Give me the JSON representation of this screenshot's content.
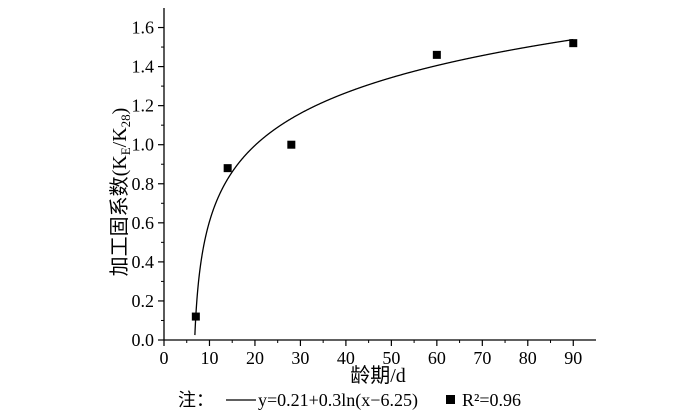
{
  "chart_data": {
    "type": "scatter",
    "xlabel": "龄期/d",
    "ylabel_main": "加工固系数(K",
    "ylabel_sub1": "E",
    "ylabel_mid": "/K",
    "ylabel_sub2": "28",
    "ylabel_end": ")",
    "xlim": [
      0,
      95
    ],
    "ylim": [
      0,
      1.7
    ],
    "x_ticks": [
      0,
      10,
      20,
      30,
      40,
      50,
      60,
      70,
      80,
      90
    ],
    "x_tick_labels": [
      "0",
      "10",
      "20",
      "30",
      "40",
      "50",
      "60",
      "70",
      "80",
      "90"
    ],
    "y_ticks": [
      0.0,
      0.2,
      0.4,
      0.6,
      0.8,
      1.0,
      1.2,
      1.4,
      1.6
    ],
    "y_tick_labels": [
      "0.0",
      "0.2",
      "0.4",
      "0.6",
      "0.8",
      "1.0",
      "1.2",
      "1.4",
      "1.6"
    ],
    "points": [
      {
        "x": 7,
        "y": 0.12
      },
      {
        "x": 14,
        "y": 0.88
      },
      {
        "x": 28,
        "y": 1.0
      },
      {
        "x": 60,
        "y": 1.46
      },
      {
        "x": 90,
        "y": 1.52
      }
    ],
    "fit": {
      "a": 0.21,
      "b": 0.3,
      "c": 6.25
    },
    "note": {
      "prefix": "注：",
      "equation": "y=0.21+0.3ln(x−6.25)",
      "r2": "R²=0.96"
    },
    "grid": false
  }
}
